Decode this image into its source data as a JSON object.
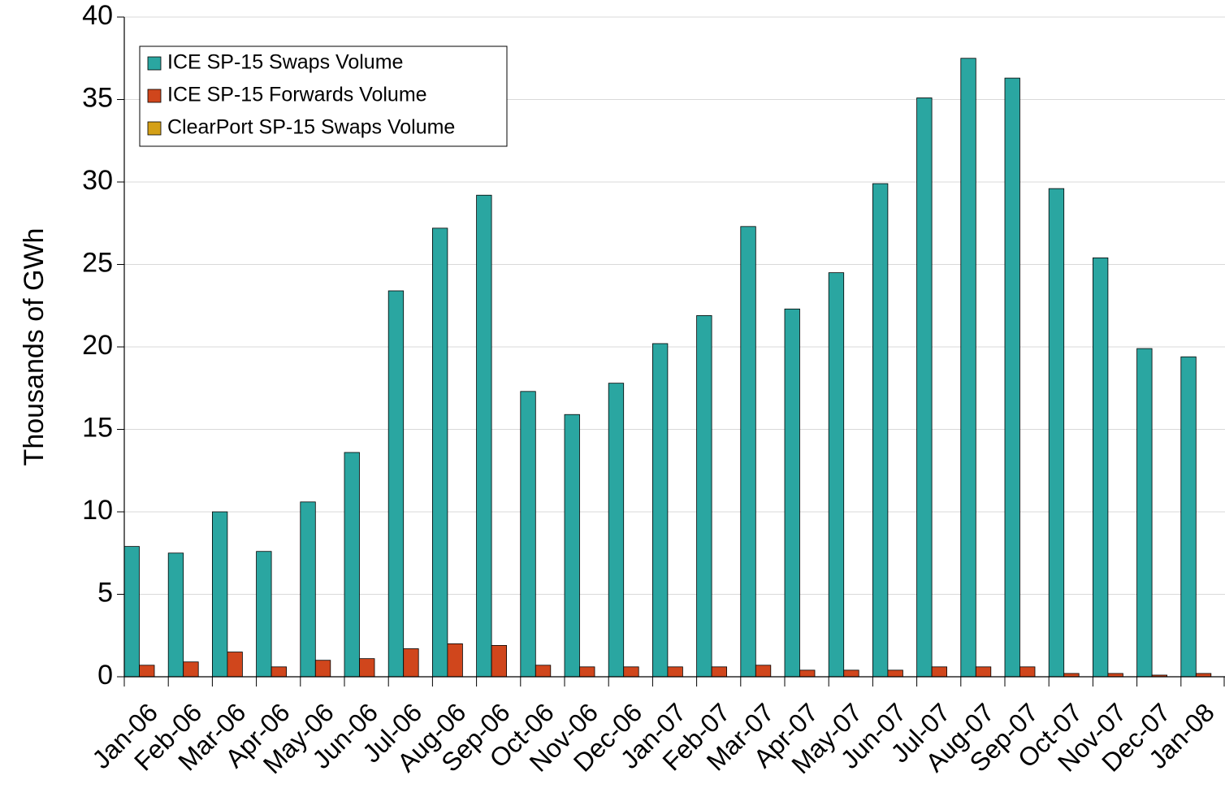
{
  "chart_data": {
    "type": "bar",
    "y_label": "Thousands of GWh",
    "categories": [
      "Jan-06",
      "Feb-06",
      "Mar-06",
      "Apr-06",
      "May-06",
      "Jun-06",
      "Jul-06",
      "Aug-06",
      "Sep-06",
      "Oct-06",
      "Nov-06",
      "Dec-06",
      "Jan-07",
      "Feb-07",
      "Mar-07",
      "Apr-07",
      "May-07",
      "Jun-07",
      "Jul-07",
      "Aug-07",
      "Sep-07",
      "Oct-07",
      "Nov-07",
      "Dec-07",
      "Jan-08"
    ],
    "series": [
      {
        "name": "ICE SP-15 Swaps Volume",
        "color": "#2aa6a1",
        "values": [
          7.9,
          7.5,
          10,
          7.6,
          10.6,
          13.6,
          23.4,
          27.2,
          29.2,
          17.3,
          15.9,
          17.8,
          20.2,
          21.9,
          27.3,
          22.3,
          24.5,
          29.9,
          35.1,
          37.5,
          36.3,
          29.6,
          25.4,
          19.9,
          19.4
        ]
      },
      {
        "name": "ICE SP-15 Forwards Volume",
        "color": "#d0461c",
        "values": [
          0.7,
          0.9,
          1.5,
          0.6,
          1.0,
          1.1,
          1.7,
          2.0,
          1.9,
          0.7,
          0.6,
          0.6,
          0.6,
          0.6,
          0.7,
          0.4,
          0.4,
          0.4,
          0.6,
          0.6,
          0.6,
          0.2,
          0.2,
          0.1,
          0.2
        ]
      },
      {
        "name": "ClearPort SP-15 Swaps Volume",
        "color": "#d4a017",
        "values": [
          0,
          0,
          0,
          0,
          0,
          0,
          0,
          0,
          0,
          0,
          0,
          0,
          0,
          0,
          0,
          0,
          0,
          0,
          0,
          0,
          0,
          0,
          0,
          0,
          0
        ]
      }
    ],
    "ylim": [
      0,
      40
    ],
    "yticks": [
      0,
      5,
      10,
      15,
      20,
      25,
      30,
      35,
      40
    ],
    "grid": true,
    "legend": "top-left"
  }
}
